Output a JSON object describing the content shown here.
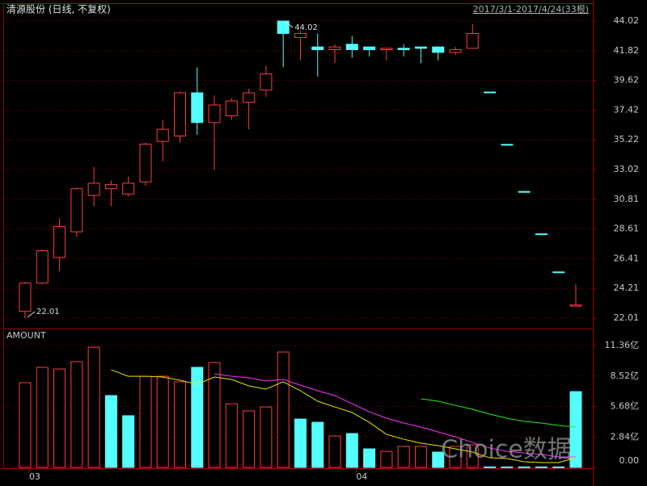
{
  "chart_data": [
    {
      "type": "candlestick",
      "title": "清源股份 (日线, 不复权)",
      "date_range": "2017/3/1-2017/4/24(33根)",
      "categories": [
        "03",
        null,
        null,
        null,
        null,
        null,
        null,
        null,
        null,
        null,
        null,
        null,
        null,
        null,
        null,
        null,
        null,
        null,
        null,
        "04",
        null,
        null,
        null,
        null,
        null,
        null,
        null,
        null,
        null,
        null,
        null,
        null,
        null
      ],
      "open": [
        22.5,
        24.6,
        26.5,
        28.4,
        31.1,
        31.6,
        31.2,
        32.1,
        35.1,
        35.5,
        38.7,
        36.5,
        37.0,
        38.0,
        38.9,
        44.02,
        42.8,
        42.1,
        41.9,
        42.3,
        42.1,
        41.9,
        42.0,
        42.1,
        42.1,
        41.7,
        42.0,
        38.76,
        34.88,
        31.39,
        28.25,
        25.43,
        22.89
      ],
      "high": [
        24.7,
        27.1,
        29.4,
        31.7,
        33.2,
        32.2,
        32.5,
        35.0,
        36.7,
        38.8,
        40.6,
        38.5,
        38.3,
        39.0,
        40.7,
        44.02,
        43.3,
        43.1,
        42.3,
        42.9,
        42.1,
        42.0,
        42.3,
        42.1,
        42.1,
        42.1,
        43.8,
        38.76,
        34.88,
        31.39,
        28.25,
        25.43,
        24.5
      ],
      "low": [
        22.01,
        24.5,
        25.5,
        28.0,
        30.3,
        30.3,
        31.0,
        31.8,
        33.6,
        35.0,
        35.6,
        33.0,
        36.7,
        36.0,
        38.4,
        40.6,
        41.1,
        39.9,
        40.9,
        41.3,
        41.4,
        41.1,
        41.4,
        40.9,
        41.1,
        41.5,
        42.0,
        38.76,
        34.88,
        31.39,
        28.25,
        25.43,
        22.89
      ],
      "close": [
        24.6,
        27.0,
        28.8,
        31.6,
        32.0,
        31.9,
        32.0,
        34.9,
        36.0,
        38.7,
        36.5,
        37.8,
        38.1,
        38.7,
        40.1,
        43.1,
        43.1,
        41.9,
        42.1,
        41.9,
        41.9,
        42.0,
        41.9,
        42.0,
        41.7,
        41.9,
        43.1,
        38.76,
        34.88,
        31.39,
        28.25,
        25.43,
        22.98
      ],
      "up_color": "#ff3c3c",
      "down_color": "#54ffff",
      "ylim": [
        21.35,
        45.28
      ],
      "yticks": [
        22.01,
        24.21,
        26.41,
        28.61,
        30.81,
        33.02,
        35.22,
        37.42,
        39.62,
        41.82,
        44.02
      ],
      "grid": true,
      "annotations": [
        {
          "text": "44.02",
          "at": "high"
        },
        {
          "text": "22.01",
          "at": "low"
        }
      ]
    },
    {
      "type": "bar",
      "title": "AMOUNT",
      "values": [
        7.9,
        9.33,
        9.18,
        9.86,
        11.21,
        6.7,
        4.82,
        8.5,
        8.5,
        7.98,
        9.33,
        9.78,
        5.94,
        5.27,
        5.64,
        10.76,
        4.51,
        4.21,
        2.93,
        3.16,
        1.73,
        1.5,
        1.96,
        1.96,
        1.43,
        1.96,
        2.11,
        0.05,
        0.05,
        0.05,
        0.05,
        0.05,
        7.07
      ],
      "colors": [
        "#ff3c3c",
        "#ff3c3c",
        "#ff3c3c",
        "#ff3c3c",
        "#ff3c3c",
        "#54ffff",
        "#54ffff",
        "#ff3c3c",
        "#ff3c3c",
        "#ff3c3c",
        "#54ffff",
        "#ff3c3c",
        "#ff3c3c",
        "#ff3c3c",
        "#ff3c3c",
        "#ff3c3c",
        "#54ffff",
        "#54ffff",
        "#ff3c3c",
        "#54ffff",
        "#54ffff",
        "#ff3c3c",
        "#ff3c3c",
        "#ff3c3c",
        "#54ffff",
        "#ff3c3c",
        "#ff3c3c",
        "#54ffff",
        "#54ffff",
        "#54ffff",
        "#54ffff",
        "#54ffff",
        "#54ffff"
      ],
      "hollow_color": "#ff3c3c",
      "series": [
        {
          "color": "#e6e600",
          "values": [
            null,
            null,
            null,
            null,
            null,
            9.1,
            8.5,
            8.5,
            8.43,
            8.13,
            7.75,
            8.43,
            8.2,
            7.6,
            7.3,
            7.98,
            7.15,
            6.17,
            5.64,
            5.12,
            4.21,
            3.08,
            2.63,
            2.26,
            2.03,
            1.73,
            1.43,
            0.9,
            0.83,
            0.53,
            0.45,
            0.45,
            0.9
          ]
        },
        {
          "color": "#ff33ff",
          "values": [
            null,
            null,
            null,
            null,
            null,
            null,
            null,
            null,
            null,
            null,
            null,
            8.73,
            8.5,
            8.35,
            8.05,
            8.2,
            7.67,
            7.15,
            6.7,
            5.94,
            5.19,
            4.59,
            4.14,
            3.76,
            3.31,
            2.86,
            2.33,
            1.81,
            1.5,
            1.35,
            1.2,
            0.98,
            0.98
          ]
        },
        {
          "color": "#22ee22",
          "values": [
            null,
            null,
            null,
            null,
            null,
            null,
            null,
            null,
            null,
            null,
            null,
            null,
            null,
            null,
            null,
            null,
            null,
            null,
            null,
            null,
            null,
            null,
            null,
            6.4,
            6.17,
            5.79,
            5.42,
            4.97,
            4.59,
            4.29,
            4.14,
            3.91,
            3.76
          ]
        }
      ],
      "ylim": [
        0,
        12.87
      ],
      "yticks": [
        {
          "value": 0,
          "label": "0.00"
        },
        {
          "value": 2.84,
          "label": "2.84亿"
        },
        {
          "value": 5.68,
          "label": "5.68亿"
        },
        {
          "value": 8.52,
          "label": "8.52亿"
        },
        {
          "value": 11.36,
          "label": "11.36亿"
        }
      ],
      "grid": true
    }
  ],
  "watermark": "Choice数据"
}
